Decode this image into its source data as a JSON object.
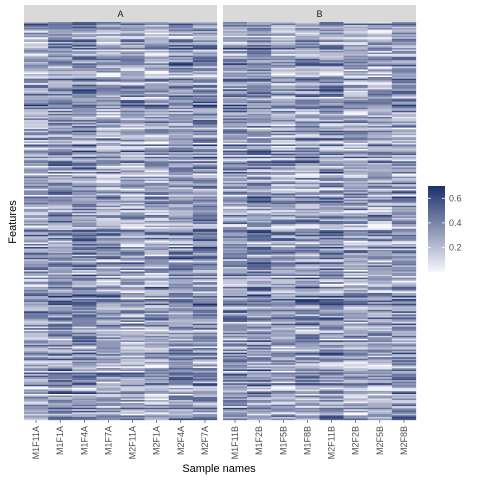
{
  "chart_data": {
    "type": "heatmap",
    "xlabel": "Sample names",
    "ylabel": "Features",
    "panels": [
      {
        "name": "A",
        "samples": [
          "M1F11A",
          "M1F1A",
          "M1F4A",
          "M1F7A",
          "M2F11A",
          "M2F1A",
          "M2F4A",
          "M2F7A"
        ]
      },
      {
        "name": "B",
        "samples": [
          "M1F11B",
          "M1F2B",
          "M1F5B",
          "M1F8B",
          "M2F11B",
          "M2F2B",
          "M2F5B",
          "M2F8B"
        ]
      }
    ],
    "color_scale": {
      "low": "#f7f7fc",
      "high": "#1c2f6b",
      "min": 0,
      "max": 0.7,
      "breaks": [
        0.2,
        0.4,
        0.6
      ],
      "break_labels": [
        "0.2",
        "0.4",
        "0.6"
      ]
    },
    "feature_count": 260,
    "grid": false,
    "legend_position": "right"
  }
}
